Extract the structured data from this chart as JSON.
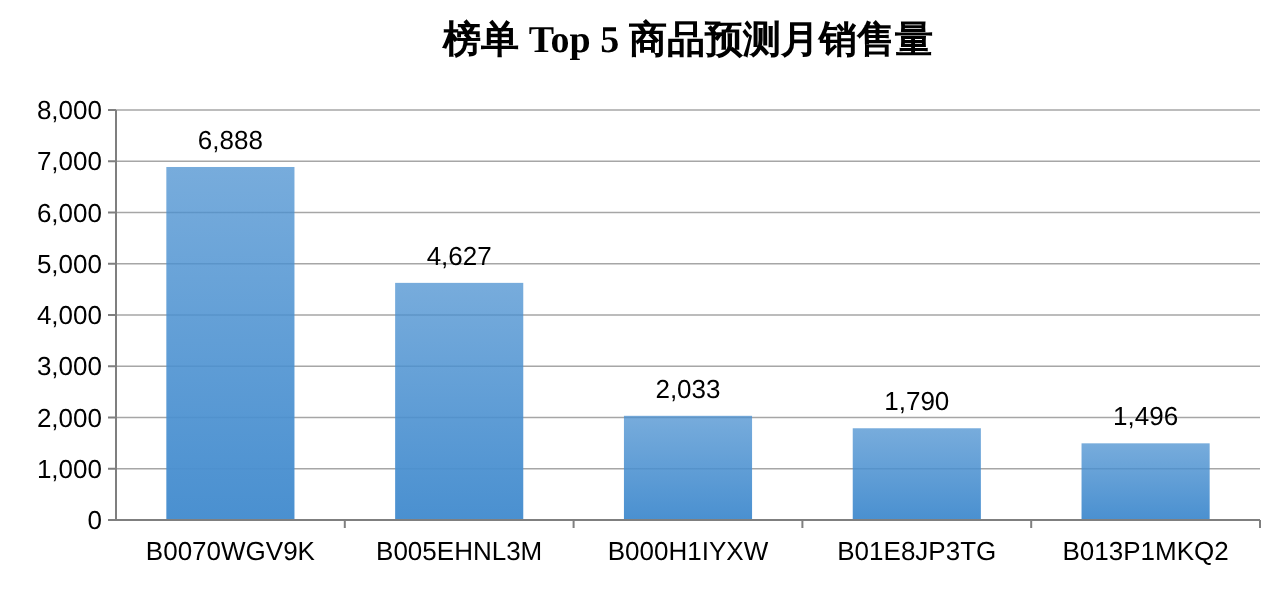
{
  "chart_data": {
    "type": "bar",
    "title": "榜单 Top 5 商品预测月销售量",
    "categories": [
      "B0070WGV9K",
      "B005EHNL3M",
      "B000H1IYXW",
      "B01E8JP3TG",
      "B013P1MKQ2"
    ],
    "values": [
      6888,
      4627,
      2033,
      1790,
      1496
    ],
    "value_labels": [
      "6,888",
      "4,627",
      "2,033",
      "1,790",
      "1,496"
    ],
    "color": "#4a90d0",
    "ylim": [
      0,
      8000
    ],
    "yticks": [
      {
        "value": 0,
        "label": "0"
      },
      {
        "value": 1000,
        "label": "1,000"
      },
      {
        "value": 2000,
        "label": "2,000"
      },
      {
        "value": 3000,
        "label": "3,000"
      },
      {
        "value": 4000,
        "label": "4,000"
      },
      {
        "value": 5000,
        "label": "5,000"
      },
      {
        "value": 6000,
        "label": "6,000"
      },
      {
        "value": 7000,
        "label": "7,000"
      },
      {
        "value": 8000,
        "label": "8,000"
      }
    ],
    "grid": "y"
  }
}
